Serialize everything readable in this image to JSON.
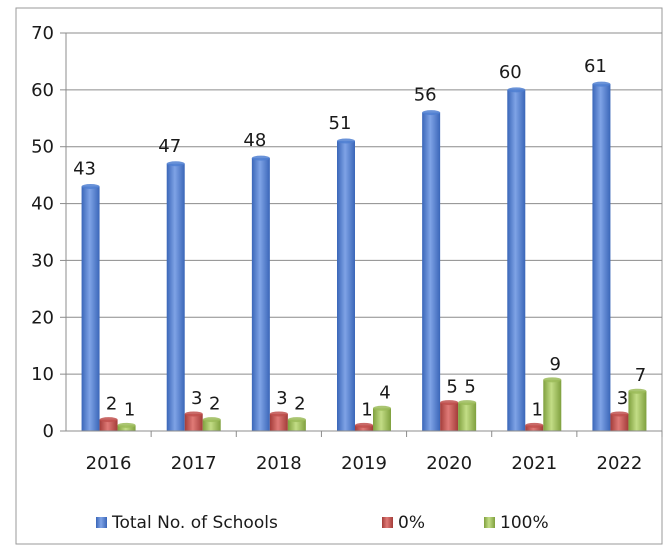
{
  "chart_data": {
    "type": "bar",
    "categories": [
      "2016",
      "2017",
      "2018",
      "2019",
      "2020",
      "2021",
      "2022"
    ],
    "series": [
      {
        "name": "Total No. of Schools",
        "values": [
          43,
          47,
          48,
          51,
          56,
          60,
          61
        ],
        "color": "#4f7fd1"
      },
      {
        "name": "0%",
        "values": [
          2,
          3,
          3,
          1,
          5,
          1,
          3
        ],
        "color": "#c0504d"
      },
      {
        "name": "100%",
        "values": [
          1,
          2,
          2,
          4,
          5,
          9,
          7
        ],
        "color": "#9bbb59"
      }
    ],
    "ylim": [
      0,
      70
    ],
    "yticks": [
      "0",
      "10",
      "20",
      "30",
      "40",
      "50",
      "60",
      "70"
    ],
    "grid": true,
    "legend_position": "bottom",
    "data_labels": true
  }
}
